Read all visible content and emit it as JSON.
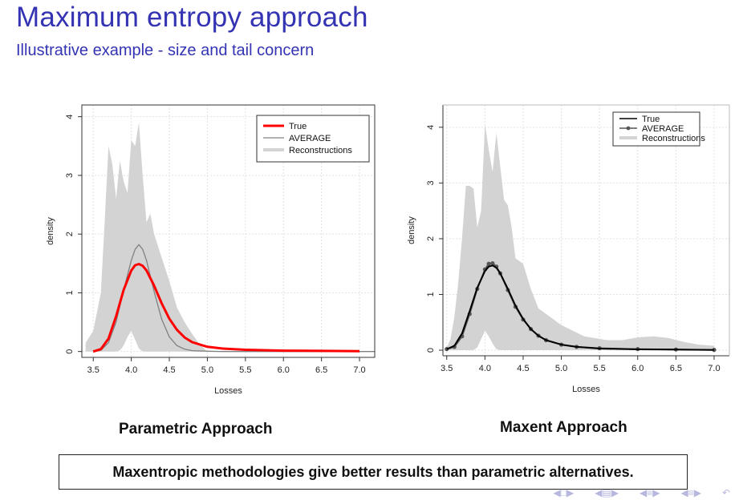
{
  "title": "Maximum entropy approach",
  "subtitle": "Illustrative example - size and tail concern",
  "captions": {
    "left": "Parametric Approach",
    "right": "Maxent Approach"
  },
  "conclusion": "Maxentropic methodologies give better results than parametric alternatives.",
  "colors": {
    "title": "#3333b3",
    "band": "#d3d3d3",
    "true_left": "#ff0000",
    "average_left": "#808080",
    "true_right": "#000000",
    "average_right": "#555555"
  },
  "nav_icons": [
    "frame-prev-icon",
    "section-prev-icon",
    "subsection-icon",
    "section-next-icon",
    "undo-icon"
  ],
  "chart_data": [
    {
      "type": "line",
      "caption": "Parametric Approach",
      "xlabel": "Losses",
      "ylabel": "density",
      "xlim": [
        3.35,
        7.2
      ],
      "ylim": [
        -0.1,
        4.2
      ],
      "xticks": [
        "3.5",
        "4.0",
        "4.5",
        "5.0",
        "5.5",
        "6.0",
        "6.5",
        "7.0"
      ],
      "yticks": [
        "0",
        "1",
        "2",
        "3",
        "4"
      ],
      "grid": true,
      "legend_position": "top-right",
      "series": [
        {
          "name": "True",
          "style": "thick-line",
          "color": "#ff0000",
          "x": [
            3.5,
            3.6,
            3.7,
            3.8,
            3.9,
            4.0,
            4.05,
            4.1,
            4.15,
            4.2,
            4.3,
            4.4,
            4.5,
            4.6,
            4.7,
            4.8,
            5.0,
            5.2,
            5.5,
            6.0,
            6.5,
            7.0
          ],
          "y": [
            0.0,
            0.04,
            0.22,
            0.6,
            1.05,
            1.38,
            1.47,
            1.49,
            1.46,
            1.38,
            1.12,
            0.82,
            0.56,
            0.37,
            0.24,
            0.16,
            0.08,
            0.05,
            0.03,
            0.015,
            0.01,
            0.005
          ]
        },
        {
          "name": "AVERAGE",
          "style": "thin-line",
          "color": "#808080",
          "x": [
            3.5,
            3.6,
            3.7,
            3.8,
            3.9,
            4.0,
            4.05,
            4.1,
            4.15,
            4.2,
            4.3,
            4.4,
            4.5,
            4.6,
            4.7,
            4.8,
            5.0,
            5.2,
            5.5,
            6.0,
            7.2
          ],
          "y": [
            0.0,
            0.02,
            0.15,
            0.5,
            1.05,
            1.55,
            1.74,
            1.82,
            1.74,
            1.55,
            1.02,
            0.55,
            0.25,
            0.1,
            0.04,
            0.015,
            0.005,
            0.0,
            0.0,
            0.0,
            0.0
          ]
        },
        {
          "name": "Reconstructions",
          "style": "band",
          "color": "#d3d3d3",
          "x": [
            3.4,
            3.5,
            3.6,
            3.65,
            3.7,
            3.75,
            3.8,
            3.85,
            3.9,
            3.95,
            4.0,
            4.05,
            4.1,
            4.15,
            4.2,
            4.25,
            4.3,
            4.35,
            4.4,
            4.5,
            4.6,
            4.7,
            4.8,
            4.9,
            5.0
          ],
          "upper": [
            0.15,
            0.35,
            1.0,
            2.2,
            3.5,
            3.2,
            2.6,
            3.25,
            2.9,
            2.7,
            3.6,
            3.5,
            3.9,
            3.0,
            2.2,
            2.35,
            2.0,
            1.8,
            1.6,
            1.2,
            0.75,
            0.5,
            0.3,
            0.12,
            0.0
          ],
          "lower": [
            0.0,
            0.0,
            0.0,
            0.0,
            0.0,
            0.0,
            0.0,
            0.02,
            0.1,
            0.25,
            0.35,
            0.2,
            0.05,
            0.0,
            0.0,
            0.0,
            0.0,
            0.0,
            0.0,
            0.0,
            0.0,
            0.0,
            0.0,
            0.0,
            0.0
          ]
        }
      ]
    },
    {
      "type": "line",
      "caption": "Maxent Approach",
      "xlabel": "Losses",
      "ylabel": "density",
      "xlim": [
        3.45,
        7.2
      ],
      "ylim": [
        -0.1,
        4.4
      ],
      "xticks": [
        "3.5",
        "4.0",
        "4.5",
        "5.0",
        "5.5",
        "6.0",
        "6.5",
        "7.0"
      ],
      "yticks": [
        "0",
        "1",
        "2",
        "3",
        "4"
      ],
      "grid": true,
      "legend_position": "top-right",
      "series": [
        {
          "name": "True",
          "style": "line",
          "color": "#000000",
          "x": [
            3.5,
            3.6,
            3.7,
            3.8,
            3.9,
            4.0,
            4.05,
            4.1,
            4.15,
            4.2,
            4.3,
            4.4,
            4.5,
            4.6,
            4.7,
            4.8,
            5.0,
            5.2,
            5.5,
            6.0,
            6.5,
            7.0
          ],
          "y": [
            0.02,
            0.08,
            0.3,
            0.7,
            1.12,
            1.42,
            1.5,
            1.52,
            1.48,
            1.38,
            1.1,
            0.8,
            0.56,
            0.38,
            0.26,
            0.18,
            0.1,
            0.06,
            0.03,
            0.015,
            0.01,
            0.005
          ]
        },
        {
          "name": "AVERAGE",
          "style": "line-points",
          "color": "#555555",
          "x": [
            3.5,
            3.6,
            3.7,
            3.8,
            3.9,
            4.0,
            4.05,
            4.1,
            4.15,
            4.2,
            4.3,
            4.4,
            4.5,
            4.6,
            4.7,
            4.8,
            5.0,
            5.2,
            5.5,
            6.0,
            6.5,
            7.0
          ],
          "y": [
            0.02,
            0.06,
            0.25,
            0.65,
            1.1,
            1.45,
            1.55,
            1.56,
            1.5,
            1.38,
            1.08,
            0.78,
            0.55,
            0.38,
            0.26,
            0.18,
            0.1,
            0.06,
            0.035,
            0.02,
            0.012,
            0.006
          ]
        },
        {
          "name": "Reconstructions",
          "style": "band",
          "color": "#d3d3d3",
          "x": [
            3.5,
            3.55,
            3.6,
            3.65,
            3.7,
            3.75,
            3.8,
            3.85,
            3.9,
            3.95,
            4.0,
            4.05,
            4.1,
            4.15,
            4.2,
            4.25,
            4.3,
            4.35,
            4.4,
            4.5,
            4.6,
            4.7,
            4.8,
            5.0,
            5.3,
            5.6,
            5.8,
            6.0,
            6.2,
            6.4,
            6.6,
            6.8,
            7.0
          ],
          "upper": [
            0.05,
            0.2,
            0.6,
            1.2,
            2.0,
            2.95,
            2.95,
            2.9,
            2.2,
            2.5,
            4.05,
            3.6,
            3.2,
            3.9,
            3.3,
            2.7,
            2.6,
            2.2,
            1.65,
            1.55,
            1.1,
            0.75,
            0.65,
            0.45,
            0.25,
            0.18,
            0.18,
            0.23,
            0.25,
            0.22,
            0.15,
            0.1,
            0.08
          ],
          "lower": [
            0.0,
            0.0,
            0.0,
            0.0,
            0.0,
            0.0,
            0.0,
            0.0,
            0.05,
            0.2,
            0.35,
            0.25,
            0.12,
            0.02,
            0.0,
            0.0,
            0.0,
            0.0,
            0.0,
            0.0,
            0.0,
            0.0,
            0.0,
            0.0,
            0.0,
            0.0,
            0.0,
            0.0,
            0.0,
            0.0,
            0.0,
            0.0,
            0.0
          ]
        }
      ]
    }
  ]
}
